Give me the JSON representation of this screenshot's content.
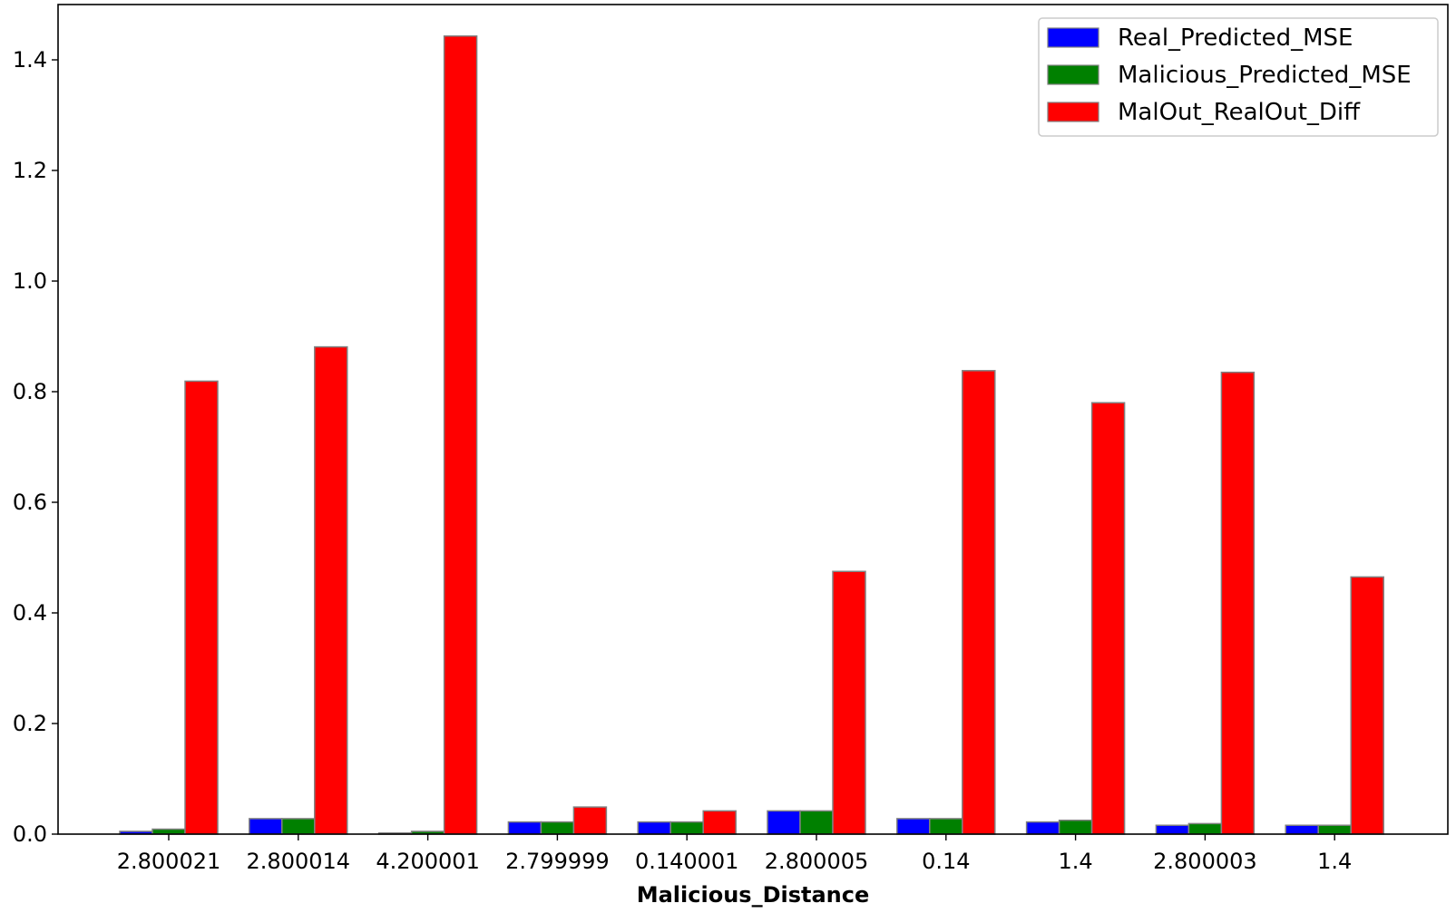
{
  "chart_data": {
    "type": "bar",
    "title": "",
    "xlabel": "Malicious_Distance",
    "ylabel": "",
    "categories": [
      "2.800021",
      "2.800014",
      "4.200001",
      "2.799999",
      "0.140001",
      "2.800005",
      "0.14",
      "1.4",
      "2.800003",
      "1.4"
    ],
    "series": [
      {
        "name": "Real_Predicted_MSE",
        "color": "#0000ff",
        "values": [
          0.005,
          0.028,
          0.002,
          0.022,
          0.022,
          0.042,
          0.028,
          0.022,
          0.016,
          0.016
        ]
      },
      {
        "name": "Malicious_Predicted_MSE",
        "color": "#008000",
        "values": [
          0.009,
          0.028,
          0.005,
          0.022,
          0.022,
          0.042,
          0.028,
          0.025,
          0.019,
          0.016
        ]
      },
      {
        "name": "MalOut_RealOut_Diff",
        "color": "#ff0000",
        "values": [
          0.819,
          0.881,
          1.443,
          0.049,
          0.042,
          0.475,
          0.838,
          0.78,
          0.835,
          0.465
        ]
      }
    ],
    "ylim": [
      0,
      1.5
    ],
    "yticks": [
      0.0,
      0.2,
      0.4,
      0.6,
      0.8,
      1.0,
      1.2,
      1.4
    ],
    "ytick_labels": [
      "0.0",
      "0.2",
      "0.4",
      "0.6",
      "0.8",
      "1.0",
      "1.2",
      "1.4"
    ],
    "grid": false,
    "legend_position": "top-right",
    "bar_edge_color": "#808080"
  }
}
